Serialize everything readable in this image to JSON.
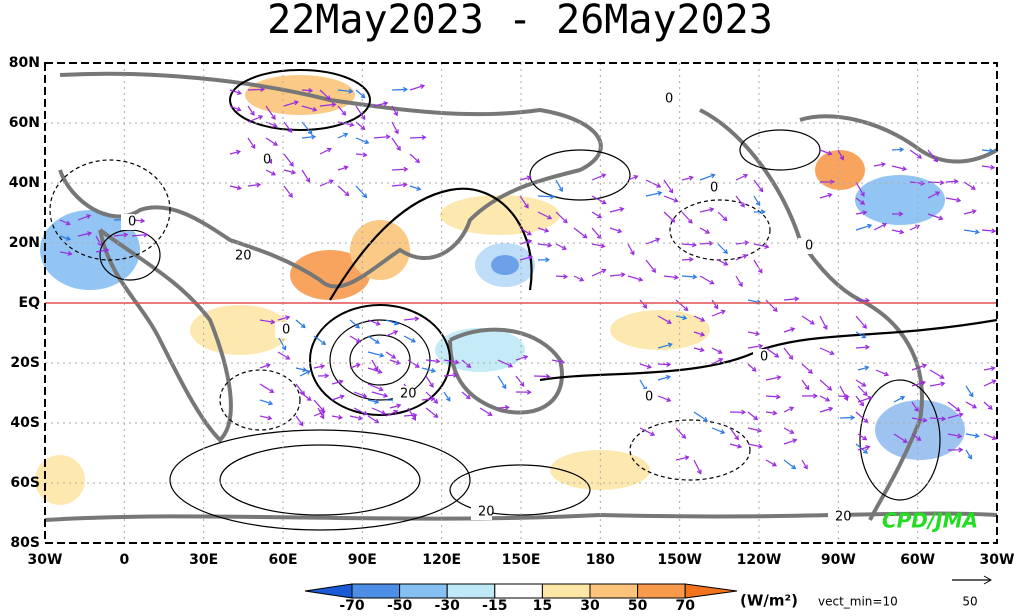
{
  "title": "22May2023 - 26May2023",
  "map": {
    "lat_labels": [
      "80N",
      "60N",
      "40N",
      "20N",
      "EQ",
      "20S",
      "40S",
      "60S",
      "80S"
    ],
    "lon_labels": [
      "30W",
      "0",
      "30E",
      "60E",
      "90E",
      "120E",
      "150E",
      "180",
      "150W",
      "120W",
      "90W",
      "60W",
      "30W"
    ],
    "contour_labels": [
      "0",
      "0",
      "0",
      "0",
      "0",
      "0",
      "0",
      "20",
      "20",
      "20",
      "0",
      "20"
    ],
    "credit": "CPD/JMA"
  },
  "colorbar": {
    "levels": [
      -70,
      -50,
      -30,
      -15,
      15,
      30,
      50,
      70
    ],
    "colors": [
      "#1a5ad6",
      "#4d8fe6",
      "#86bff2",
      "#bfe9f7",
      "#ffffff",
      "#fde7a6",
      "#fcc47a",
      "#f89a4c",
      "#f2731c"
    ],
    "unit": "(W/m²)",
    "vect_min": "vect_min=10"
  },
  "reference_vector": {
    "label": 50
  }
}
